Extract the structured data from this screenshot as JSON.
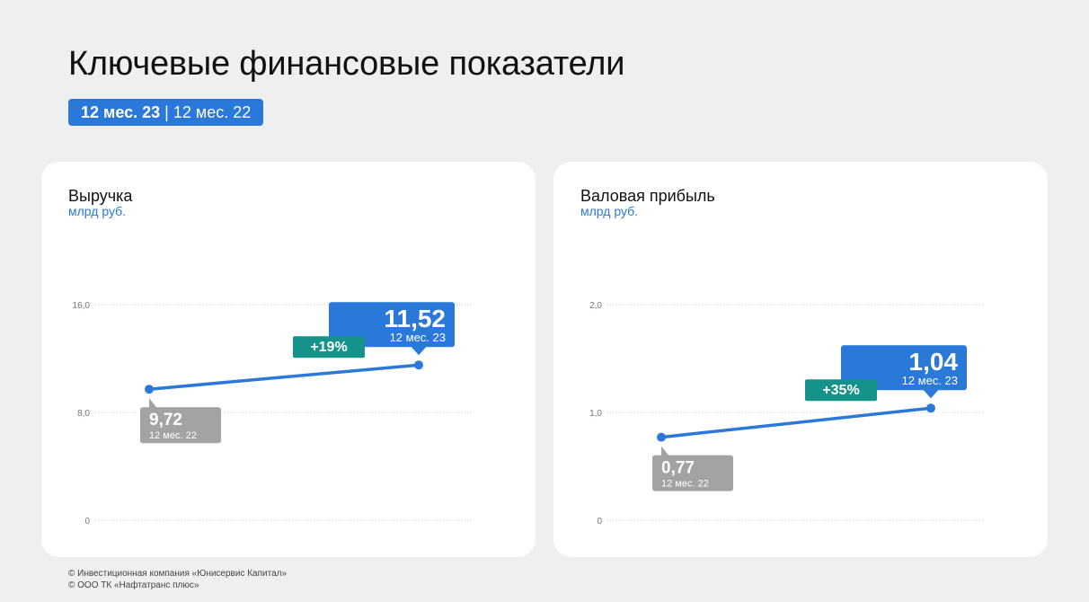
{
  "title": "Ключевые финансовые показатели",
  "period": {
    "current": "12 мес. 23",
    "separator": "|",
    "previous": "12 мес. 22"
  },
  "colors": {
    "accent": "#2a78d8",
    "growth": "#15928a",
    "previous": "#a3a3a3",
    "grid": "#cfcfcf"
  },
  "chart_data": [
    {
      "type": "line",
      "title": "Выручка",
      "unit": "млрд руб.",
      "categories": [
        "12 мес. 22",
        "12 мес. 23"
      ],
      "values": [
        9.72,
        11.52
      ],
      "value_labels": [
        "9,72",
        "11,52"
      ],
      "yticks": [
        "0",
        "8,0",
        "16,0"
      ],
      "ylim": [
        0,
        16
      ],
      "change_label": "+19%",
      "grid": true
    },
    {
      "type": "line",
      "title": "Валовая прибыль",
      "unit": "млрд руб.",
      "categories": [
        "12 мес. 22",
        "12 мес. 23"
      ],
      "values": [
        0.77,
        1.04
      ],
      "value_labels": [
        "0,77",
        "1,04"
      ],
      "yticks": [
        "0",
        "1,0",
        "2,0"
      ],
      "ylim": [
        0,
        2
      ],
      "change_label": "+35%",
      "grid": true
    }
  ],
  "footer": {
    "line1": "© Инвестиционная компания «Юнисервис Капитал»",
    "line2": "© ООО ТК «Нафтатранс плюс»"
  }
}
